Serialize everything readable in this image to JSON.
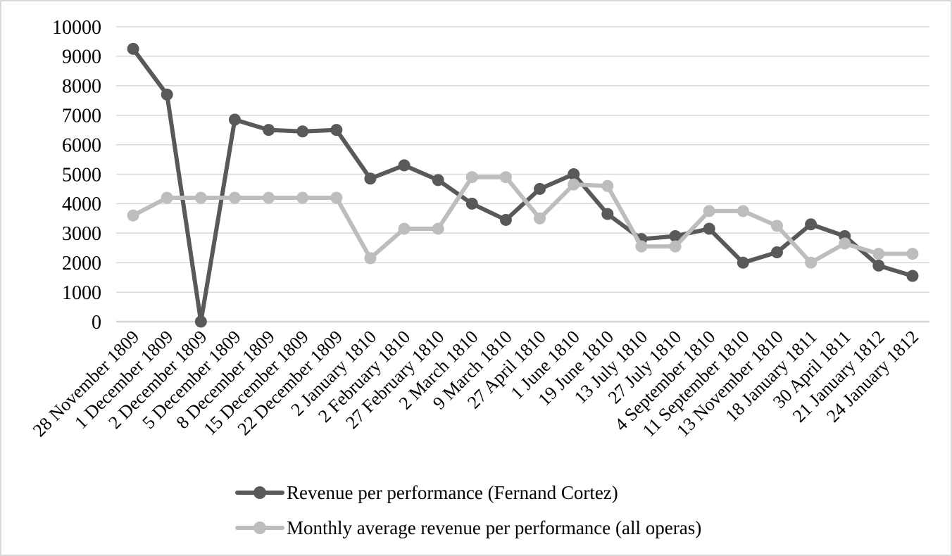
{
  "chart_data": {
    "type": "line",
    "title": "",
    "xlabel": "",
    "ylabel": "",
    "categories": [
      "28 November 1809",
      "1 December 1809",
      "2 December 1809",
      "5 December 1809",
      "8 December 1809",
      "15 December 1809",
      "22 December 1809",
      "2 January 1810",
      "2 February 1810",
      "27 February 1810",
      "2 March 1810",
      "9 March 1810",
      "27 April 1810",
      "1 June 1810",
      "19 June 1810",
      "13 July 1810",
      "27 July 1810",
      "4 September 1810",
      "11 September 1810",
      "13 November 1810",
      "18 January 1811",
      "30 April 1811",
      "21 January 1812",
      "24 January 1812"
    ],
    "series": [
      {
        "name": "Revenue per performance (Fernand Cortez)",
        "color": "#595959",
        "values": [
          9250,
          7700,
          0,
          6850,
          6500,
          6450,
          6500,
          4850,
          5300,
          4800,
          4000,
          3450,
          4500,
          5000,
          3650,
          2800,
          2900,
          3150,
          2000,
          2350,
          3300,
          2900,
          1900,
          1550
        ]
      },
      {
        "name": "Monthly average revenue per performance (all operas)",
        "color": "#bdbdbd",
        "values": [
          3600,
          4200,
          4200,
          4200,
          4200,
          4200,
          4200,
          2150,
          3150,
          3150,
          4900,
          4900,
          3500,
          4650,
          4600,
          2550,
          2550,
          3750,
          3750,
          3250,
          2000,
          2650,
          2300,
          2300
        ]
      }
    ],
    "ylim": [
      0,
      10000
    ],
    "yticks": [
      0,
      1000,
      2000,
      3000,
      4000,
      5000,
      6000,
      7000,
      8000,
      9000,
      10000
    ],
    "grid": "horizontal",
    "legend_position": "bottom-left",
    "x_label_rotation_deg": 45
  },
  "colors": {
    "background": "#ffffff",
    "border": "#d9d9d9",
    "gridline": "#d9d9d9",
    "axis_line": "#d6d6d6",
    "text": "#000000"
  }
}
